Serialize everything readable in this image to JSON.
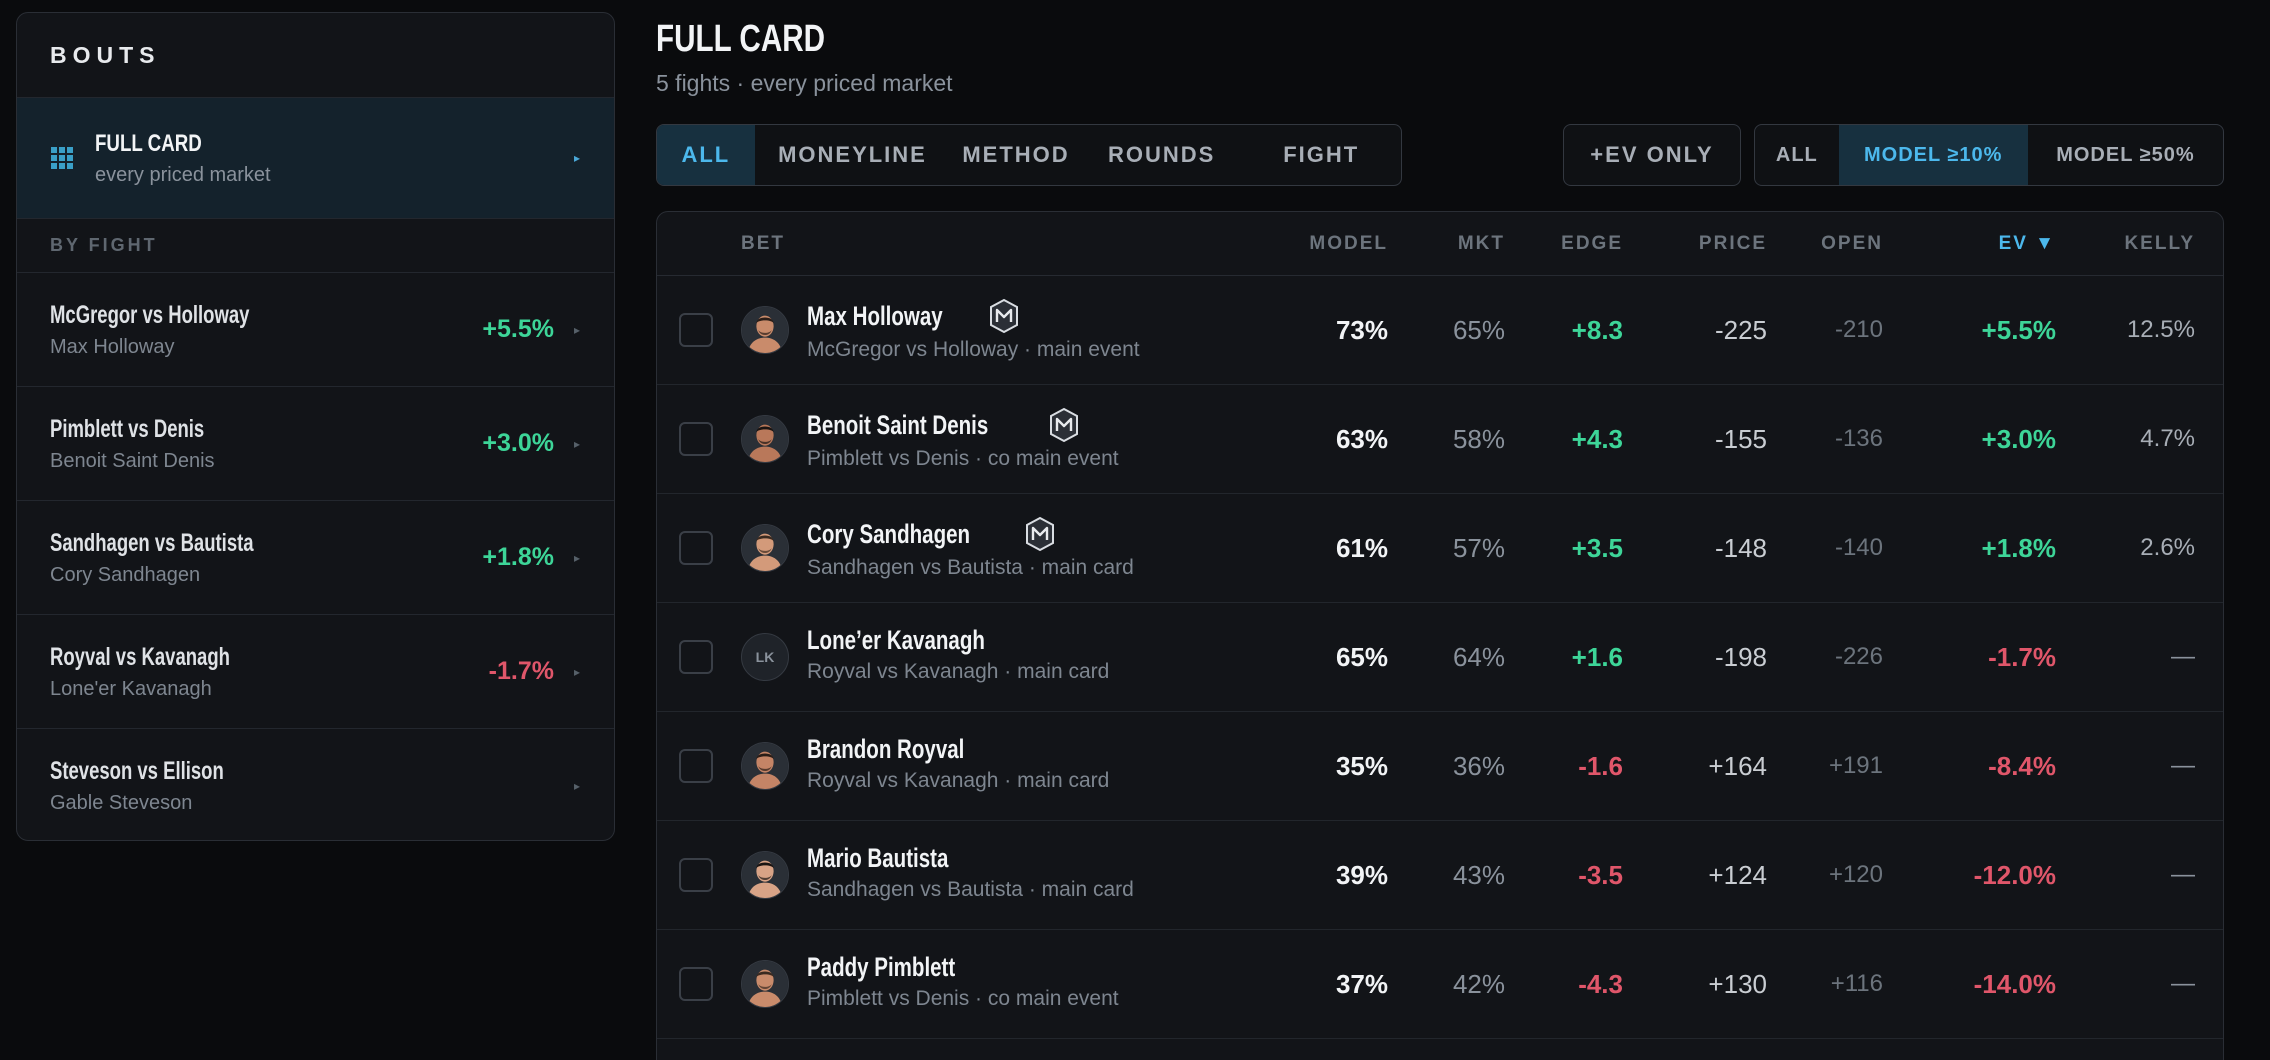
{
  "sidebar": {
    "title": "BOUTS",
    "full_card": {
      "title": "FULL CARD",
      "subtitle": "every priced market"
    },
    "section_label": "BY FIGHT",
    "items": [
      {
        "fight": "McGregor vs Holloway",
        "fighter": "Max Holloway",
        "ev": "+5.5%",
        "ev_sign": "pos"
      },
      {
        "fight": "Pimblett vs Denis",
        "fighter": "Benoit Saint Denis",
        "ev": "+3.0%",
        "ev_sign": "pos"
      },
      {
        "fight": "Sandhagen vs Bautista",
        "fighter": "Cory Sandhagen",
        "ev": "+1.8%",
        "ev_sign": "pos"
      },
      {
        "fight": "Royval vs Kavanagh",
        "fighter": "Lone'er Kavanagh",
        "ev": "-1.7%",
        "ev_sign": "neg"
      },
      {
        "fight": "Steveson vs Ellison",
        "fighter": "Gable Steveson",
        "ev": "",
        "ev_sign": ""
      }
    ]
  },
  "main": {
    "title": "FULL CARD",
    "subtitle": "5 fights · every priced market",
    "market_tabs": [
      "ALL",
      "MONEYLINE",
      "METHOD",
      "ROUNDS",
      "FIGHT"
    ],
    "market_active": 0,
    "ev_only_label": "+EV ONLY",
    "model_filters": [
      "ALL",
      "MODEL ≥10%",
      "MODEL ≥50%"
    ],
    "model_active": 1
  },
  "table": {
    "headers": {
      "bet": "BET",
      "model": "MODEL",
      "mkt": "MKT",
      "edge": "EDGE",
      "price": "PRICE",
      "open": "OPEN",
      "ev": "EV ▼",
      "kelly": "KELLY"
    },
    "rows": [
      {
        "name": "Max Holloway",
        "sub": "McGregor vs Holloway · main event",
        "badge": true,
        "avatar": "photo",
        "model": "73%",
        "mkt": "65%",
        "edge": "+8.3",
        "price": "-225",
        "open": "-210",
        "ev": "+5.5%",
        "kelly": "12.5%",
        "sign": "pos"
      },
      {
        "name": "Benoit Saint Denis",
        "sub": "Pimblett vs Denis · co main event",
        "badge": true,
        "avatar": "photo",
        "model": "63%",
        "mkt": "58%",
        "edge": "+4.3",
        "price": "-155",
        "open": "-136",
        "ev": "+3.0%",
        "kelly": "4.7%",
        "sign": "pos"
      },
      {
        "name": "Cory Sandhagen",
        "sub": "Sandhagen vs Bautista · main card",
        "badge": true,
        "avatar": "photo",
        "model": "61%",
        "mkt": "57%",
        "edge": "+3.5",
        "price": "-148",
        "open": "-140",
        "ev": "+1.8%",
        "kelly": "2.6%",
        "sign": "pos"
      },
      {
        "name": "Lone’er Kavanagh",
        "sub": "Royval vs Kavanagh · main card",
        "badge": false,
        "avatar": "LK",
        "model": "65%",
        "mkt": "64%",
        "edge": "+1.6",
        "price": "-198",
        "open": "-226",
        "ev": "-1.7%",
        "kelly": "—",
        "sign": "mixed"
      },
      {
        "name": "Brandon Royval",
        "sub": "Royval vs Kavanagh · main card",
        "badge": false,
        "avatar": "photo",
        "model": "35%",
        "mkt": "36%",
        "edge": "-1.6",
        "price": "+164",
        "open": "+191",
        "ev": "-8.4%",
        "kelly": "—",
        "sign": "neg"
      },
      {
        "name": "Mario Bautista",
        "sub": "Sandhagen vs Bautista · main card",
        "badge": false,
        "avatar": "photo",
        "model": "39%",
        "mkt": "43%",
        "edge": "-3.5",
        "price": "+124",
        "open": "+120",
        "ev": "-12.0%",
        "kelly": "—",
        "sign": "neg"
      },
      {
        "name": "Paddy Pimblett",
        "sub": "Pimblett vs Denis · co main event",
        "badge": false,
        "avatar": "photo",
        "model": "37%",
        "mkt": "42%",
        "edge": "-4.3",
        "price": "+130",
        "open": "+116",
        "ev": "-14.0%",
        "kelly": "—",
        "sign": "neg"
      }
    ]
  },
  "colors": {
    "positive": "#3dd598",
    "negative": "#e0566a",
    "accent": "#4cb8ec"
  }
}
